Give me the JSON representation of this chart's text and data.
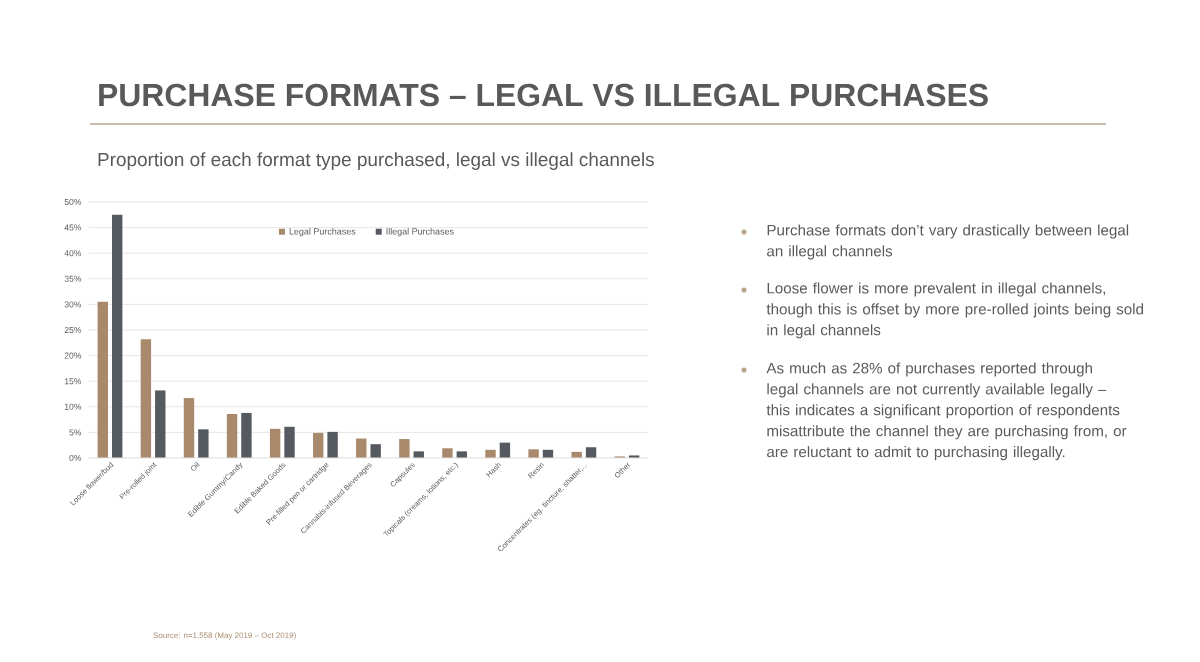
{
  "chart_data": {
    "type": "bar",
    "title": "PURCHASE FORMATS – LEGAL VS ILLEGAL PURCHASES",
    "subtitle": "Proportion of each format type purchased, legal vs illegal channels",
    "categories": [
      "Loose flower/bud",
      "Pre-rolled joint",
      "Oil",
      "Edible Gummy/Candy",
      "Edible Baked Goods",
      "Pre-filled pen or cartridge",
      "Cannabis-infused Beverages",
      "Capsules",
      "Topicals (creams, lotions, etc.)",
      "Hash",
      "Resin",
      "Concentrates (eg. tincture, shatter,...",
      "Other"
    ],
    "series": [
      {
        "name": "Legal Purchases",
        "color": "#a8896c",
        "values": [
          30.5,
          23.2,
          11.7,
          8.6,
          5.7,
          4.9,
          3.8,
          3.7,
          1.9,
          1.6,
          1.7,
          1.2,
          0.3
        ]
      },
      {
        "name": "Illegal Purchases",
        "color": "#555a60",
        "values": [
          47.5,
          13.2,
          5.6,
          8.8,
          6.1,
          5.1,
          2.7,
          1.3,
          1.3,
          3.0,
          1.6,
          2.1,
          0.5
        ]
      }
    ],
    "ylim": [
      0,
      50
    ],
    "yticks": [
      {
        "value": 0,
        "label": "0%"
      },
      {
        "value": 5,
        "label": "5%"
      },
      {
        "value": 10,
        "label": "10%"
      },
      {
        "value": 15,
        "label": "15%"
      },
      {
        "value": 20,
        "label": "20%"
      },
      {
        "value": 25,
        "label": "25%"
      },
      {
        "value": 30,
        "label": "30%"
      },
      {
        "value": 35,
        "label": "35%"
      },
      {
        "value": 40,
        "label": "40%"
      },
      {
        "value": 45,
        "label": "45%"
      },
      {
        "value": 50,
        "label": "50%"
      }
    ],
    "grid": "y",
    "legend": "top",
    "annotations": [
      "Purchase formats don’t vary drastically between legal an illegal channels",
      "Loose flower is more prevalent in illegal channels, though this is offset by more pre-rolled joints being sold in legal channels",
      "As much as 28% of purchases reported through legal channels are not currently available legally – this indicates a significant proportion of respondents misattribute the channel they are purchasing from, or are reluctant to admit to purchasing illegally.",
      "Source: n=1,558 (May 2019 – Oct 2019)"
    ]
  }
}
